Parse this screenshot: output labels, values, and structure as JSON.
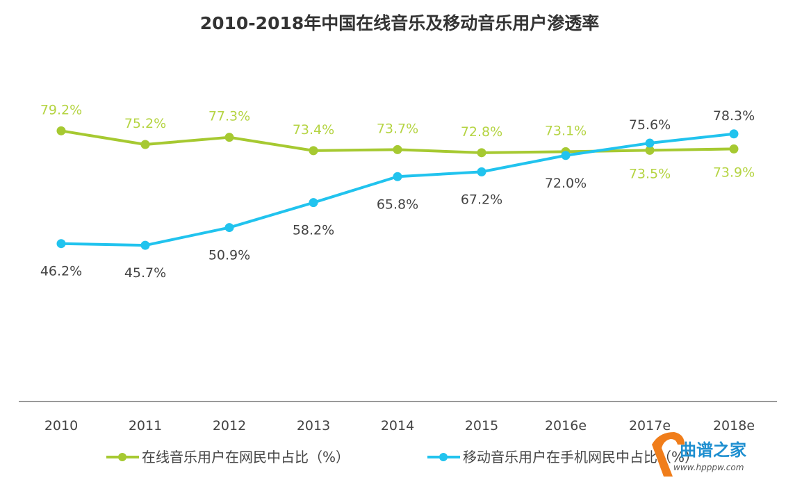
{
  "chart_data": {
    "type": "line",
    "title": "2010-2018年中国在线音乐及移动音乐用户渗透率",
    "xlabel": "",
    "ylabel": "",
    "ylim": [
      0,
      100
    ],
    "grid": false,
    "legend_position": "bottom",
    "categories": [
      "2010",
      "2011",
      "2012",
      "2013",
      "2014",
      "2015",
      "2016e",
      "2017e",
      "2018e"
    ],
    "series": [
      {
        "name": "在线音乐用户在网民中占比（%）",
        "color": "#a6c931",
        "values": [
          79.2,
          75.2,
          77.3,
          73.4,
          73.7,
          72.8,
          73.1,
          73.5,
          73.9
        ],
        "labels": [
          "79.2%",
          "75.2%",
          "77.3%",
          "73.4%",
          "73.7%",
          "72.8%",
          "73.1%",
          "73.5%",
          "73.9%"
        ],
        "label_positions": [
          "above",
          "above",
          "above",
          "above",
          "above",
          "above",
          "above",
          "below",
          "below"
        ]
      },
      {
        "name": "移动音乐用户在手机网民中占比（%）",
        "color": "#21c3ee",
        "values": [
          46.2,
          45.7,
          50.9,
          58.2,
          65.8,
          67.2,
          72.0,
          75.6,
          78.3
        ],
        "labels": [
          "46.2%",
          "45.7%",
          "50.9%",
          "58.2%",
          "65.8%",
          "67.2%",
          "72.0%",
          "75.6%",
          "78.3%"
        ],
        "label_positions": [
          "below",
          "below",
          "below",
          "below",
          "below",
          "below",
          "below",
          "above",
          "above"
        ]
      }
    ]
  },
  "watermark": {
    "name": "曲谱之家",
    "url": "www.hpppw.com",
    "color": "#f07d1a"
  }
}
